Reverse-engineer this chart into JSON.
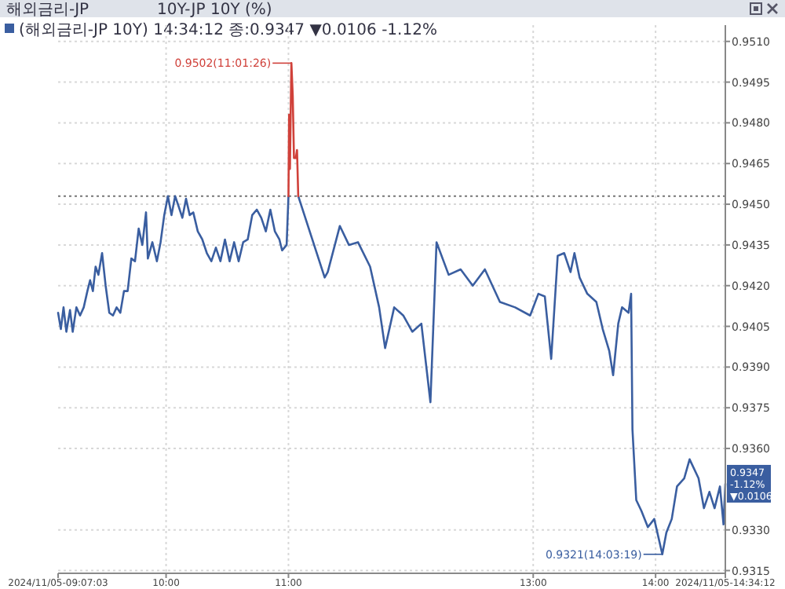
{
  "chart_data": {
    "type": "line",
    "title": "해외금리-JP",
    "subtitle": "10Y-JP 10Y (%)",
    "annotations": [
      "(해외금리-JP 10Y) 14:34:12 종:0.9347 ▼0.0106 -1.12%",
      {
        "text": "0.9502(11:01:26)",
        "x": 11.024,
        "y": 0.9502
      },
      {
        "text": "0.9321(14:03:19)",
        "x": 14.055,
        "y": 0.9321
      },
      {
        "text": "0.9347\n-1.12%\n▼0.0106",
        "x": 14.57,
        "y": 0.9347
      }
    ],
    "x": [
      9.1175,
      9.14,
      9.162,
      9.185,
      9.215,
      9.237,
      9.267,
      9.297,
      9.327,
      9.357,
      9.379,
      9.402,
      9.424,
      9.447,
      9.477,
      9.506,
      9.536,
      9.566,
      9.596,
      9.626,
      9.656,
      9.686,
      9.716,
      9.746,
      9.776,
      9.806,
      9.836,
      9.851,
      9.888,
      9.925,
      9.955,
      9.985,
      10.015,
      10.044,
      10.074,
      10.104,
      10.133,
      10.163,
      10.193,
      10.222,
      10.259,
      10.296,
      10.333,
      10.37,
      10.407,
      10.444,
      10.481,
      10.519,
      10.556,
      10.593,
      10.63,
      10.667,
      10.704,
      10.741,
      10.778,
      10.815,
      10.852,
      10.889,
      10.926,
      10.948,
      10.985,
      11.0,
      11.005,
      11.012,
      11.018,
      11.024,
      11.035,
      11.045,
      11.06,
      11.07,
      11.08,
      11.296,
      11.321,
      11.42,
      11.494,
      11.568,
      11.667,
      11.741,
      11.79,
      11.864,
      11.938,
      12.012,
      12.086,
      12.16,
      12.21,
      12.309,
      12.407,
      12.506,
      12.605,
      12.728,
      12.852,
      12.975,
      13.042,
      13.095,
      13.147,
      13.2,
      13.253,
      13.305,
      13.337,
      13.379,
      13.442,
      13.516,
      13.568,
      13.621,
      13.653,
      13.695,
      13.726,
      13.779,
      13.8,
      13.811,
      13.842,
      13.884,
      13.937,
      13.989,
      14.055,
      14.088,
      14.132,
      14.175,
      14.234,
      14.278,
      14.351,
      14.395,
      14.44,
      14.482,
      14.526,
      14.555,
      14.57
    ],
    "series": [
      {
        "color": "#3a5ea0",
        "values": [
          0.941,
          0.9404,
          0.9412,
          0.9403,
          0.9411,
          0.9403,
          0.9412,
          0.9409,
          0.9412,
          0.9418,
          0.9422,
          0.9418,
          0.9427,
          0.9424,
          0.9432,
          0.942,
          0.941,
          0.9409,
          0.9412,
          0.941,
          0.9418,
          0.9418,
          0.943,
          0.9429,
          0.9441,
          0.9435,
          0.9447,
          0.943,
          0.9436,
          0.9429,
          0.9436,
          0.9446,
          0.9453,
          0.9446,
          0.9453,
          0.9449,
          0.9445,
          0.9452,
          0.9446,
          0.9447,
          0.944,
          0.9437,
          0.9432,
          0.9429,
          0.9434,
          0.9429,
          0.9437,
          0.9429,
          0.9436,
          0.9429,
          0.9436,
          0.9437,
          0.9446,
          0.9448,
          0.9445,
          0.944,
          0.9448,
          0.944,
          0.9437,
          0.9433,
          0.9435,
          0.9453,
          null,
          null,
          null,
          null,
          null,
          null,
          null,
          null,
          0.9453,
          0.9423,
          0.9425,
          0.9442,
          0.9435,
          0.9436,
          0.9427,
          0.9412,
          0.9397,
          0.9412,
          0.9409,
          0.9403,
          0.9406,
          0.9377,
          0.9436,
          0.9424,
          0.9426,
          0.942,
          0.9426,
          0.9414,
          0.9412,
          0.9409,
          0.9417,
          0.9416,
          0.9393,
          0.9431,
          0.9432,
          0.9425,
          0.9432,
          0.9423,
          0.9417,
          0.9414,
          0.9404,
          0.9396,
          0.9387,
          0.9406,
          0.9412,
          0.941,
          0.9417,
          0.9367,
          0.9341,
          0.9337,
          0.9331,
          0.9334,
          0.9321,
          0.9329,
          0.9334,
          0.9346,
          0.9349,
          0.9356,
          0.9349,
          0.9338,
          0.9344,
          0.9338,
          0.9346,
          0.9332,
          0.9347
        ]
      },
      {
        "color": "#d0413a",
        "values": [
          null,
          null,
          null,
          null,
          null,
          null,
          null,
          null,
          null,
          null,
          null,
          null,
          null,
          null,
          null,
          null,
          null,
          null,
          null,
          null,
          null,
          null,
          null,
          null,
          null,
          null,
          null,
          null,
          null,
          null,
          null,
          null,
          null,
          null,
          null,
          null,
          null,
          null,
          null,
          null,
          null,
          null,
          null,
          null,
          null,
          null,
          null,
          null,
          null,
          null,
          null,
          null,
          null,
          null,
          null,
          null,
          null,
          null,
          null,
          null,
          null,
          0.9453,
          0.9483,
          0.9463,
          0.9483,
          0.9502,
          0.949,
          0.9467,
          0.9467,
          0.947,
          0.9453,
          null,
          null,
          null,
          null,
          null,
          null,
          null,
          null,
          null,
          null,
          null,
          null,
          null,
          null,
          null,
          null,
          null,
          null,
          null,
          null,
          null,
          null,
          null,
          null,
          null,
          null,
          null,
          null,
          null,
          null,
          null,
          null,
          null,
          null,
          null,
          null,
          null,
          null,
          null,
          null,
          null,
          null,
          null,
          null,
          null,
          null,
          null,
          null,
          null,
          null,
          null,
          null,
          null,
          null,
          null,
          null
        ]
      }
    ],
    "xlim": [
      9.1175,
      14.57
    ],
    "xticks": [
      {
        "value": 9.1175,
        "label": "2024/11/05-09:07:03"
      },
      {
        "value": 10,
        "label": "10:00"
      },
      {
        "value": 11,
        "label": "11:00"
      },
      {
        "value": 13,
        "label": "13:00"
      },
      {
        "value": 14,
        "label": "14:00"
      },
      {
        "value": 14.57,
        "label": "2024/11/05-14:34:12"
      }
    ],
    "ylim": [
      0.9314,
      0.9516
    ],
    "yticks": [
      0.9315,
      {
        "value": 0.933,
        "label": "0.9330"
      },
      {
        "value": 0.936,
        "label": "0.9360"
      },
      0.9375,
      {
        "value": 0.939,
        "label": "0.9390"
      },
      0.9405,
      {
        "value": 0.942,
        "label": "0.9420"
      },
      0.9435,
      {
        "value": 0.945,
        "label": "0.9450"
      },
      0.9465,
      {
        "value": 0.948,
        "label": "0.9480"
      },
      0.9495,
      {
        "value": 0.951,
        "label": "0.9510"
      }
    ],
    "ref_lines": [
      {
        "axis": "y",
        "value": 0.9453,
        "color": "#777777",
        "line_style": "dotted"
      }
    ],
    "grid": true,
    "line_style": "solid",
    "marker": "none"
  }
}
